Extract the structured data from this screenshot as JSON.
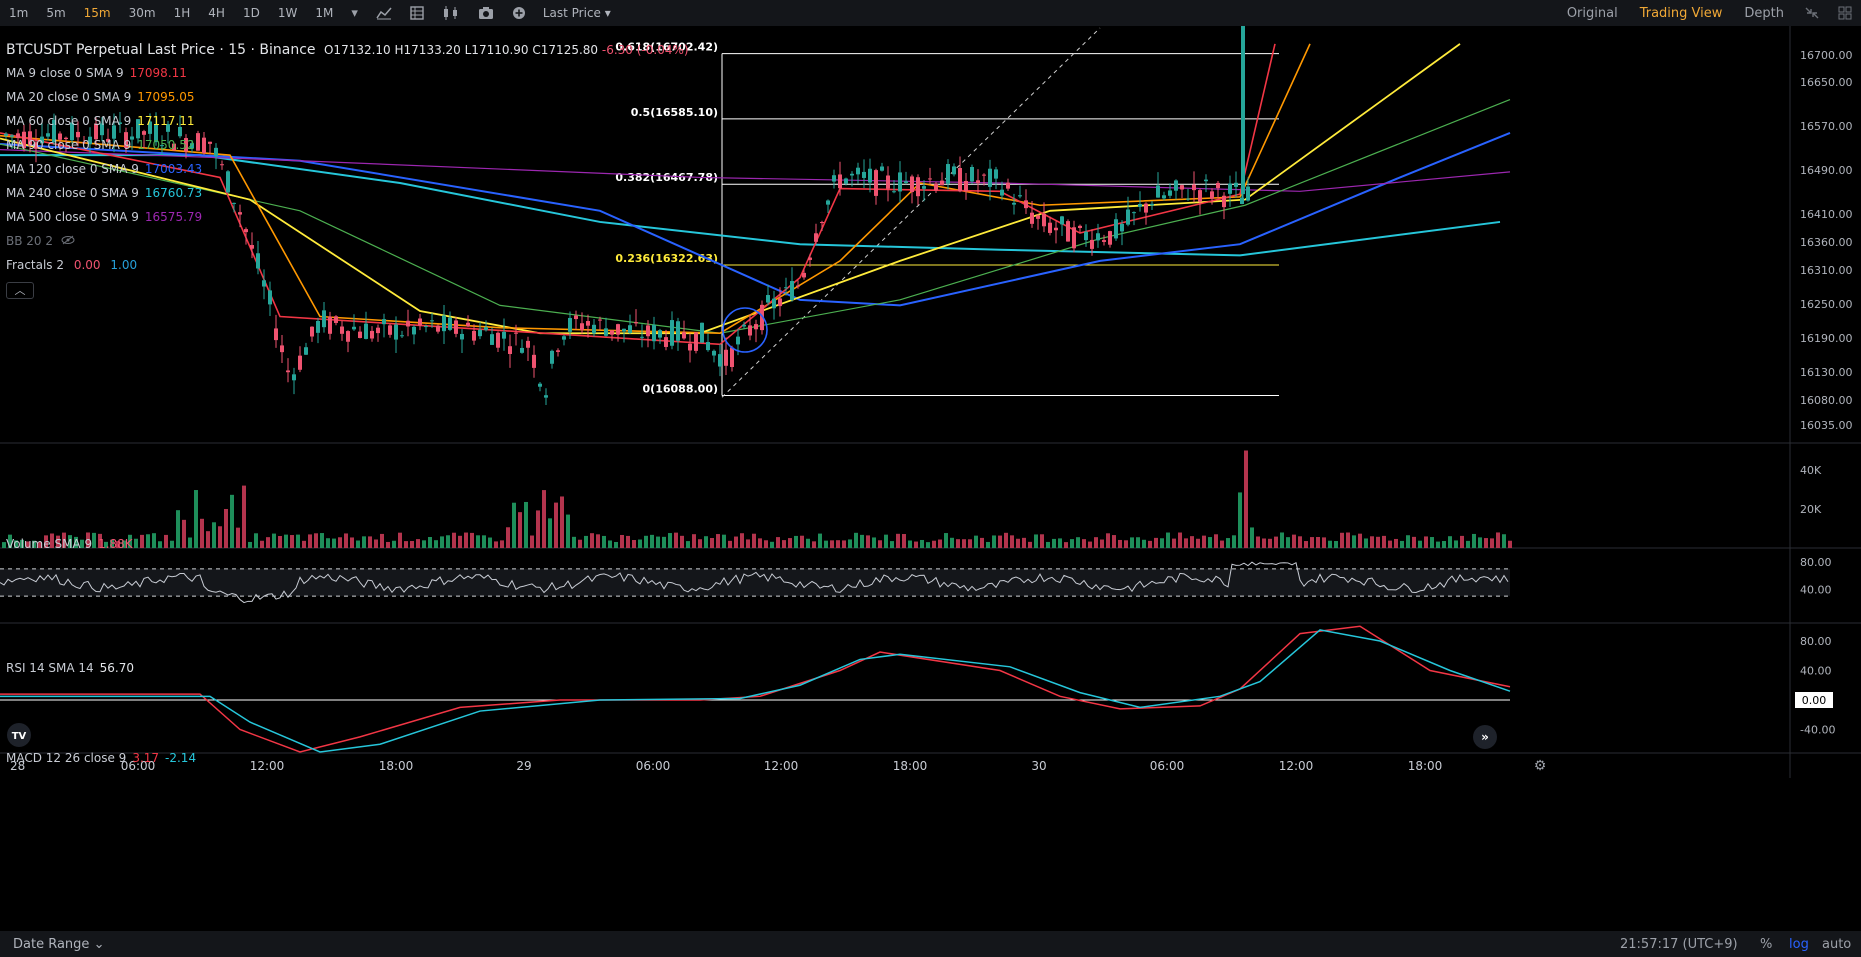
{
  "toolbar": {
    "timeframes": [
      "1m",
      "5m",
      "15m",
      "30m",
      "1H",
      "4H",
      "1D",
      "1W",
      "1M"
    ],
    "active_timeframe": "15m",
    "price_source": "Last Price",
    "view_tabs": [
      "Original",
      "Trading View",
      "Depth"
    ],
    "active_view": "Trading View"
  },
  "legend": {
    "title": "BTCUSDT Perpetual Last Price · 15 · Binance",
    "ohlc": {
      "o": "O17132.10",
      "h": "H17133.20",
      "l": "L17110.90",
      "c": "C17125.80",
      "chg": "-6.30 (-0.04%)"
    },
    "ma": [
      {
        "label": "MA 9 close 0 SMA 9",
        "value": "17098.11",
        "color": "#f23645"
      },
      {
        "label": "MA 20 close 0 SMA 9",
        "value": "17095.05",
        "color": "#ff9800"
      },
      {
        "label": "MA 60 close 0 SMA 9",
        "value": "17117.11",
        "color": "#ffeb3b"
      },
      {
        "label": "MA 90 close 0 SMA 9",
        "value": "17050.52",
        "color": "#4caf50"
      },
      {
        "label": "MA 120 close 0 SMA 9",
        "value": "17003.43",
        "color": "#2962ff"
      },
      {
        "label": "MA 240 close 0 SMA 9",
        "value": "16760.73",
        "color": "#26c6da"
      },
      {
        "label": "MA 500 close 0 SMA 9",
        "value": "16575.79",
        "color": "#9c27b0"
      }
    ],
    "bb": "BB 20 2",
    "fractals": {
      "label": "Fractals 2",
      "v1": "0.00",
      "v2": "1.00"
    }
  },
  "price_axis": [
    "16700.00",
    "16650.00",
    "16570.00",
    "16490.00",
    "16410.00",
    "16360.00",
    "16310.00",
    "16250.00",
    "16190.00",
    "16130.00",
    "16080.00",
    "16035.00"
  ],
  "fib": [
    {
      "label": "0.618(16702.42)",
      "color": "#ffffff"
    },
    {
      "label": "0.5(16585.10)",
      "color": "#ffffff"
    },
    {
      "label": "0.382(16467.78)",
      "color": "#ffffff"
    },
    {
      "label": "0.236(16322.63)",
      "color": "#ffeb3b"
    },
    {
      "label": "0(16088.00)",
      "color": "#ffffff"
    }
  ],
  "volume": {
    "label": "Volume SMA 9",
    "value": "1.88K",
    "axis": [
      "40K",
      "20K"
    ]
  },
  "rsi": {
    "label": "RSI 14 SMA 14",
    "value": "56.70",
    "axis": [
      "80.00",
      "40.00"
    ]
  },
  "macd": {
    "label": "MACD 12 26 close 9",
    "v1": "3.17",
    "v2": "-2.14",
    "axis": [
      "80.00",
      "40.00",
      "0.00",
      "-40.00"
    ]
  },
  "time_axis": [
    "28",
    "06:00",
    "12:00",
    "18:00",
    "29",
    "06:00",
    "12:00",
    "18:00",
    "30",
    "06:00",
    "12:00",
    "18:00"
  ],
  "bottom": {
    "date_range": "Date Range",
    "clock": "21:57:17 (UTC+9)",
    "pct": "%",
    "log": "log",
    "auto": "auto"
  },
  "colors": {
    "up": "#26a69a",
    "up_vol": "#1e8e5a",
    "down": "#ef5370",
    "down_vol": "#b3344d",
    "accent": "#f0a836",
    "macd": "#f23645",
    "signal": "#26c6da"
  }
}
